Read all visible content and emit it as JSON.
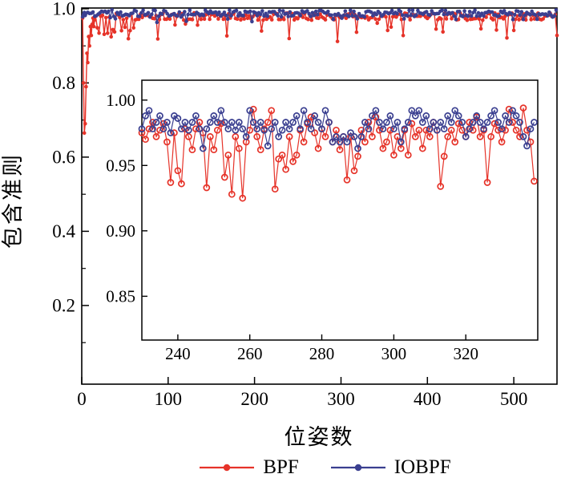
{
  "figure": {
    "background": "#ffffff",
    "text_color": "#000000",
    "frame_color": "#000000"
  },
  "chart_data": {
    "type": "line",
    "title": "",
    "legend": {
      "position": "bottom-center-outside",
      "entries": [
        {
          "label": "BPF",
          "color": "#e63329",
          "marker": "filled-circle"
        },
        {
          "label": "IOBPF",
          "color": "#3a3f90",
          "marker": "filled-circle"
        }
      ]
    },
    "main": {
      "xlabel": "位姿数",
      "ylabel": "包含准则",
      "xlim": [
        0,
        550
      ],
      "ylim": [
        -0.012,
        1.002
      ],
      "xticks": [
        0,
        100,
        200,
        300,
        400,
        500
      ],
      "xtick_labels": [
        "0",
        "100",
        "200",
        "300",
        "400",
        "500"
      ],
      "yticks": [
        0.2,
        0.4,
        0.6,
        0.8,
        1.0
      ],
      "ytick_labels": [
        "0.2",
        "0.4",
        "0.6",
        "0.8",
        "1.0"
      ],
      "y_minor_ticks": [
        0.1,
        0.3,
        0.5,
        0.7,
        0.9
      ],
      "grid": false,
      "series": [
        {
          "name": "BPF",
          "color": "#e63329",
          "start_points": [
            [
              1,
              0.975
            ],
            [
              2,
              0.8
            ],
            [
              3,
              0.665
            ],
            [
              4,
              0.69
            ],
            [
              5,
              0.79
            ],
            [
              6,
              0.88
            ],
            [
              7,
              0.855
            ],
            [
              8,
              0.925
            ],
            [
              9,
              0.9
            ],
            [
              10,
              0.952
            ],
            [
              11,
              0.928
            ],
            [
              12,
              0.958
            ],
            [
              13,
              0.975
            ],
            [
              14,
              0.952
            ],
            [
              15,
              0.97
            ]
          ],
          "band": {
            "x_from": 16,
            "x_to": 550,
            "x_step": 2,
            "base": 0.979,
            "noise": 0.01,
            "max": 1.0,
            "dip": {
              "early_until": 160,
              "prob_early": 0.18,
              "prob_late": 0.085,
              "extra_depth_min": 0.02,
              "extra_depth_max": 0.062
            },
            "seed": 13
          }
        },
        {
          "name": "IOBPF",
          "color": "#3a3f90",
          "start_points": [
            [
              1,
              0.978
            ],
            [
              2,
              0.985
            ],
            [
              3,
              0.99
            ],
            [
              4,
              0.982
            ],
            [
              5,
              0.988
            ]
          ],
          "band": {
            "x_from": 7,
            "x_to": 550,
            "x_step": 2,
            "base": 0.988,
            "noise": 0.009,
            "max": 1.003,
            "dip": {
              "early_until": 160,
              "prob_early": 0.06,
              "prob_late": 0.06,
              "extra_depth_min": 0.004,
              "extra_depth_max": 0.018
            },
            "seed": 47
          }
        }
      ]
    },
    "inset": {
      "xlim": [
        230,
        340
      ],
      "ylim": [
        0.8165,
        1.0152
      ],
      "xticks": [
        240,
        260,
        280,
        300,
        320
      ],
      "xtick_labels": [
        "240",
        "260",
        "280",
        "300",
        "320"
      ],
      "yticks": [
        0.85,
        0.9,
        0.95,
        1.0
      ],
      "ytick_labels": [
        "0.85",
        "0.90",
        "0.95",
        "1.00"
      ],
      "grid": false,
      "series": [
        {
          "name": "BPF",
          "color": "#e63329",
          "x_start": 230,
          "x_step": 1,
          "values": [
            0.975,
            0.97,
            0.978,
            0.983,
            0.972,
            0.977,
            0.982,
            0.968,
            0.937,
            0.975,
            0.946,
            0.936,
            0.978,
            0.972,
            0.962,
            0.978,
            0.983,
            0.975,
            0.933,
            0.972,
            0.962,
            0.977,
            0.982,
            0.941,
            0.958,
            0.928,
            0.972,
            0.963,
            0.925,
            0.968,
            0.977,
            0.993,
            0.972,
            0.962,
            0.978,
            0.983,
            0.992,
            0.932,
            0.955,
            0.958,
            0.947,
            0.972,
            0.953,
            0.958,
            0.977,
            0.968,
            0.982,
            0.987,
            0.975,
            0.963,
            0.978,
            0.972,
            0.983,
            0.968,
            0.977,
            0.962,
            0.972,
            0.939,
            0.972,
            0.946,
            0.957,
            0.977,
            0.968,
            0.983,
            0.972,
            0.987,
            0.977,
            0.963,
            0.968,
            0.977,
            0.958,
            0.972,
            0.963,
            0.977,
            0.958,
            0.982,
            0.972,
            0.977,
            0.963,
            0.977,
            0.972,
            0.983,
            0.977,
            0.934,
            0.957,
            0.972,
            0.977,
            0.968,
            0.982,
            0.977,
            0.972,
            0.983,
            0.977,
            0.987,
            0.972,
            0.977,
            0.937,
            0.972,
            0.982,
            0.977,
            0.968,
            0.977,
            0.993,
            0.983,
            0.977,
            0.972,
            0.994,
            0.977,
            0.968,
            0.938
          ]
        },
        {
          "name": "IOBPF",
          "color": "#3a3f90",
          "x_start": 230,
          "x_step": 1,
          "values": [
            0.978,
            0.988,
            0.992,
            0.978,
            0.983,
            0.988,
            0.978,
            0.983,
            0.975,
            0.988,
            0.986,
            0.978,
            0.983,
            0.977,
            0.983,
            0.988,
            0.978,
            0.963,
            0.978,
            0.983,
            0.988,
            0.983,
            0.992,
            0.983,
            0.978,
            0.983,
            0.977,
            0.983,
            0.978,
            0.972,
            0.992,
            0.983,
            0.978,
            0.983,
            0.977,
            0.965,
            0.978,
            0.983,
            0.972,
            0.977,
            0.983,
            0.978,
            0.983,
            0.988,
            0.978,
            0.992,
            0.983,
            0.978,
            0.988,
            0.983,
            0.978,
            0.992,
            0.983,
            0.968,
            0.972,
            0.968,
            0.972,
            0.968,
            0.975,
            0.972,
            0.963,
            0.972,
            0.983,
            0.978,
            0.988,
            0.992,
            0.983,
            0.978,
            0.983,
            0.988,
            0.978,
            0.983,
            0.968,
            0.978,
            0.983,
            0.992,
            0.988,
            0.992,
            0.983,
            0.988,
            0.978,
            0.983,
            0.977,
            0.983,
            0.978,
            0.988,
            0.983,
            0.992,
            0.988,
            0.983,
            0.972,
            0.978,
            0.983,
            0.988,
            0.983,
            0.978,
            0.983,
            0.988,
            0.992,
            0.983,
            0.978,
            0.988,
            0.983,
            0.992,
            0.988,
            0.983,
            0.972,
            0.965,
            0.978,
            0.983
          ]
        }
      ]
    }
  }
}
